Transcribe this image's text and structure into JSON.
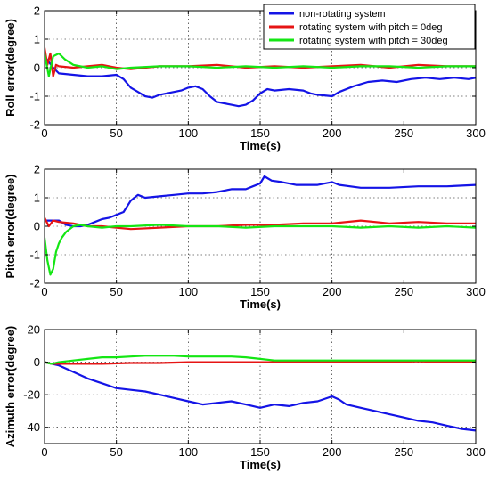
{
  "chart_data": [
    {
      "type": "line",
      "ylabel": "Roll error(degree)",
      "xlabel": "Time(s)",
      "xlim": [
        0,
        300
      ],
      "ylim": [
        -2,
        2
      ],
      "xticks": [
        0,
        50,
        100,
        150,
        200,
        250,
        300
      ],
      "yticks": [
        -2,
        -1,
        0,
        1,
        2
      ],
      "grid": true,
      "legend": {
        "position": "top-right",
        "entries": [
          {
            "label": "non-rotating system",
            "color": "#1414e6"
          },
          {
            "label": "rotating system with pitch = 0deg",
            "color": "#e61414"
          },
          {
            "label": "rotating system with pitch = 30deg",
            "color": "#14e614"
          }
        ]
      },
      "series": [
        {
          "color": "#1414e6",
          "points": [
            [
              0,
              0.4
            ],
            [
              3,
              0.2
            ],
            [
              6,
              0.0
            ],
            [
              10,
              -0.2
            ],
            [
              20,
              -0.25
            ],
            [
              30,
              -0.3
            ],
            [
              40,
              -0.3
            ],
            [
              50,
              -0.25
            ],
            [
              55,
              -0.4
            ],
            [
              60,
              -0.7
            ],
            [
              65,
              -0.85
            ],
            [
              70,
              -1.0
            ],
            [
              75,
              -1.05
            ],
            [
              80,
              -0.95
            ],
            [
              85,
              -0.9
            ],
            [
              90,
              -0.85
            ],
            [
              95,
              -0.8
            ],
            [
              100,
              -0.7
            ],
            [
              105,
              -0.65
            ],
            [
              110,
              -0.75
            ],
            [
              115,
              -1.0
            ],
            [
              120,
              -1.2
            ],
            [
              125,
              -1.25
            ],
            [
              130,
              -1.3
            ],
            [
              135,
              -1.35
            ],
            [
              140,
              -1.3
            ],
            [
              145,
              -1.15
            ],
            [
              150,
              -0.9
            ],
            [
              155,
              -0.75
            ],
            [
              160,
              -0.8
            ],
            [
              170,
              -0.75
            ],
            [
              180,
              -0.8
            ],
            [
              185,
              -0.9
            ],
            [
              190,
              -0.95
            ],
            [
              200,
              -1.0
            ],
            [
              205,
              -0.85
            ],
            [
              215,
              -0.65
            ],
            [
              225,
              -0.5
            ],
            [
              235,
              -0.45
            ],
            [
              245,
              -0.5
            ],
            [
              255,
              -0.4
            ],
            [
              265,
              -0.35
            ],
            [
              275,
              -0.4
            ],
            [
              285,
              -0.35
            ],
            [
              295,
              -0.4
            ],
            [
              300,
              -0.35
            ]
          ]
        },
        {
          "color": "#e61414",
          "points": [
            [
              0,
              0.7
            ],
            [
              2,
              0.1
            ],
            [
              4,
              0.5
            ],
            [
              6,
              -0.3
            ],
            [
              8,
              0.1
            ],
            [
              10,
              0.05
            ],
            [
              20,
              0.0
            ],
            [
              30,
              0.05
            ],
            [
              40,
              0.1
            ],
            [
              50,
              0.0
            ],
            [
              60,
              -0.05
            ],
            [
              80,
              0.05
            ],
            [
              100,
              0.05
            ],
            [
              120,
              0.1
            ],
            [
              140,
              0.0
            ],
            [
              160,
              0.05
            ],
            [
              180,
              0.0
            ],
            [
              200,
              0.05
            ],
            [
              220,
              0.1
            ],
            [
              240,
              0.0
            ],
            [
              260,
              0.1
            ],
            [
              280,
              0.05
            ],
            [
              300,
              0.05
            ]
          ]
        },
        {
          "color": "#14e614",
          "points": [
            [
              0,
              0.5
            ],
            [
              3,
              -0.3
            ],
            [
              6,
              0.4
            ],
            [
              10,
              0.5
            ],
            [
              14,
              0.3
            ],
            [
              20,
              0.1
            ],
            [
              30,
              0.0
            ],
            [
              40,
              0.05
            ],
            [
              50,
              -0.05
            ],
            [
              60,
              0.0
            ],
            [
              80,
              0.05
            ],
            [
              100,
              0.05
            ],
            [
              120,
              0.0
            ],
            [
              140,
              0.05
            ],
            [
              160,
              0.0
            ],
            [
              180,
              0.05
            ],
            [
              200,
              0.0
            ],
            [
              220,
              0.05
            ],
            [
              240,
              0.05
            ],
            [
              260,
              0.0
            ],
            [
              280,
              0.05
            ],
            [
              300,
              0.05
            ]
          ]
        }
      ]
    },
    {
      "type": "line",
      "ylabel": "Pitch error(degree)",
      "xlabel": "Time(s)",
      "xlim": [
        0,
        300
      ],
      "ylim": [
        -2,
        2
      ],
      "xticks": [
        0,
        50,
        100,
        150,
        200,
        250,
        300
      ],
      "yticks": [
        -2,
        -1,
        0,
        1,
        2
      ],
      "grid": true,
      "series": [
        {
          "color": "#1414e6",
          "points": [
            [
              0,
              0.2
            ],
            [
              5,
              0.2
            ],
            [
              10,
              0.2
            ],
            [
              15,
              0.05
            ],
            [
              20,
              0.0
            ],
            [
              25,
              0.0
            ],
            [
              30,
              0.05
            ],
            [
              35,
              0.15
            ],
            [
              40,
              0.25
            ],
            [
              45,
              0.3
            ],
            [
              50,
              0.4
            ],
            [
              55,
              0.5
            ],
            [
              60,
              0.9
            ],
            [
              65,
              1.1
            ],
            [
              70,
              1.0
            ],
            [
              80,
              1.05
            ],
            [
              90,
              1.1
            ],
            [
              100,
              1.15
            ],
            [
              110,
              1.15
            ],
            [
              120,
              1.2
            ],
            [
              130,
              1.3
            ],
            [
              140,
              1.3
            ],
            [
              145,
              1.4
            ],
            [
              150,
              1.5
            ],
            [
              153,
              1.75
            ],
            [
              158,
              1.6
            ],
            [
              165,
              1.55
            ],
            [
              175,
              1.45
            ],
            [
              190,
              1.45
            ],
            [
              200,
              1.55
            ],
            [
              205,
              1.45
            ],
            [
              220,
              1.35
            ],
            [
              240,
              1.35
            ],
            [
              260,
              1.4
            ],
            [
              280,
              1.4
            ],
            [
              300,
              1.45
            ]
          ]
        },
        {
          "color": "#e61414",
          "points": [
            [
              0,
              0.3
            ],
            [
              3,
              0.0
            ],
            [
              6,
              0.2
            ],
            [
              10,
              0.15
            ],
            [
              20,
              0.1
            ],
            [
              30,
              0.0
            ],
            [
              40,
              0.0
            ],
            [
              50,
              -0.05
            ],
            [
              60,
              -0.1
            ],
            [
              80,
              -0.05
            ],
            [
              100,
              0.0
            ],
            [
              120,
              0.0
            ],
            [
              140,
              0.05
            ],
            [
              160,
              0.05
            ],
            [
              180,
              0.1
            ],
            [
              200,
              0.1
            ],
            [
              220,
              0.2
            ],
            [
              240,
              0.1
            ],
            [
              260,
              0.15
            ],
            [
              280,
              0.1
            ],
            [
              300,
              0.1
            ]
          ]
        },
        {
          "color": "#14e614",
          "points": [
            [
              0,
              -0.4
            ],
            [
              2,
              -1.2
            ],
            [
              4,
              -1.7
            ],
            [
              6,
              -1.5
            ],
            [
              8,
              -0.9
            ],
            [
              10,
              -0.6
            ],
            [
              12,
              -0.4
            ],
            [
              15,
              -0.2
            ],
            [
              20,
              0.0
            ],
            [
              25,
              0.05
            ],
            [
              30,
              0.0
            ],
            [
              40,
              -0.05
            ],
            [
              50,
              0.0
            ],
            [
              60,
              0.0
            ],
            [
              80,
              0.05
            ],
            [
              100,
              0.0
            ],
            [
              120,
              0.0
            ],
            [
              140,
              -0.05
            ],
            [
              160,
              0.0
            ],
            [
              180,
              0.0
            ],
            [
              200,
              0.0
            ],
            [
              220,
              -0.05
            ],
            [
              240,
              0.0
            ],
            [
              260,
              -0.05
            ],
            [
              280,
              0.0
            ],
            [
              300,
              -0.05
            ]
          ]
        }
      ]
    },
    {
      "type": "line",
      "ylabel": "Azimuth error(degree)",
      "xlabel": "Time(s)",
      "xlim": [
        0,
        300
      ],
      "ylim": [
        -50,
        20
      ],
      "xticks": [
        0,
        50,
        100,
        150,
        200,
        250,
        300
      ],
      "yticks": [
        -40,
        -20,
        0,
        20
      ],
      "grid": true,
      "series": [
        {
          "color": "#1414e6",
          "points": [
            [
              0,
              0
            ],
            [
              5,
              -1
            ],
            [
              10,
              -2
            ],
            [
              20,
              -6
            ],
            [
              30,
              -10
            ],
            [
              40,
              -13
            ],
            [
              50,
              -16
            ],
            [
              60,
              -17
            ],
            [
              70,
              -18
            ],
            [
              80,
              -20
            ],
            [
              90,
              -22
            ],
            [
              100,
              -24
            ],
            [
              110,
              -26
            ],
            [
              120,
              -25
            ],
            [
              130,
              -24
            ],
            [
              140,
              -26
            ],
            [
              150,
              -28
            ],
            [
              160,
              -26
            ],
            [
              170,
              -27
            ],
            [
              180,
              -25
            ],
            [
              190,
              -24
            ],
            [
              200,
              -21
            ],
            [
              205,
              -23
            ],
            [
              210,
              -26
            ],
            [
              220,
              -28
            ],
            [
              230,
              -30
            ],
            [
              240,
              -32
            ],
            [
              250,
              -34
            ],
            [
              260,
              -36
            ],
            [
              270,
              -37
            ],
            [
              280,
              -39
            ],
            [
              290,
              -41
            ],
            [
              300,
              -42
            ]
          ]
        },
        {
          "color": "#e61414",
          "points": [
            [
              0,
              0
            ],
            [
              5,
              -1
            ],
            [
              10,
              -1
            ],
            [
              20,
              -1
            ],
            [
              40,
              -1
            ],
            [
              60,
              -0.5
            ],
            [
              80,
              -0.5
            ],
            [
              100,
              0
            ],
            [
              120,
              0
            ],
            [
              140,
              0
            ],
            [
              160,
              0
            ],
            [
              180,
              0
            ],
            [
              200,
              0
            ],
            [
              220,
              0
            ],
            [
              240,
              0
            ],
            [
              260,
              0.5
            ],
            [
              280,
              0
            ],
            [
              300,
              0
            ]
          ]
        },
        {
          "color": "#14e614",
          "points": [
            [
              0,
              0
            ],
            [
              5,
              -1
            ],
            [
              10,
              0
            ],
            [
              20,
              1
            ],
            [
              30,
              2
            ],
            [
              40,
              3
            ],
            [
              50,
              3
            ],
            [
              60,
              3.5
            ],
            [
              70,
              4
            ],
            [
              80,
              4
            ],
            [
              90,
              4
            ],
            [
              100,
              3.5
            ],
            [
              110,
              3.5
            ],
            [
              120,
              3.5
            ],
            [
              130,
              3.5
            ],
            [
              140,
              3
            ],
            [
              150,
              2
            ],
            [
              160,
              1
            ],
            [
              180,
              1
            ],
            [
              200,
              1
            ],
            [
              220,
              1
            ],
            [
              240,
              1
            ],
            [
              260,
              1
            ],
            [
              280,
              1
            ],
            [
              300,
              1
            ]
          ]
        }
      ]
    }
  ]
}
